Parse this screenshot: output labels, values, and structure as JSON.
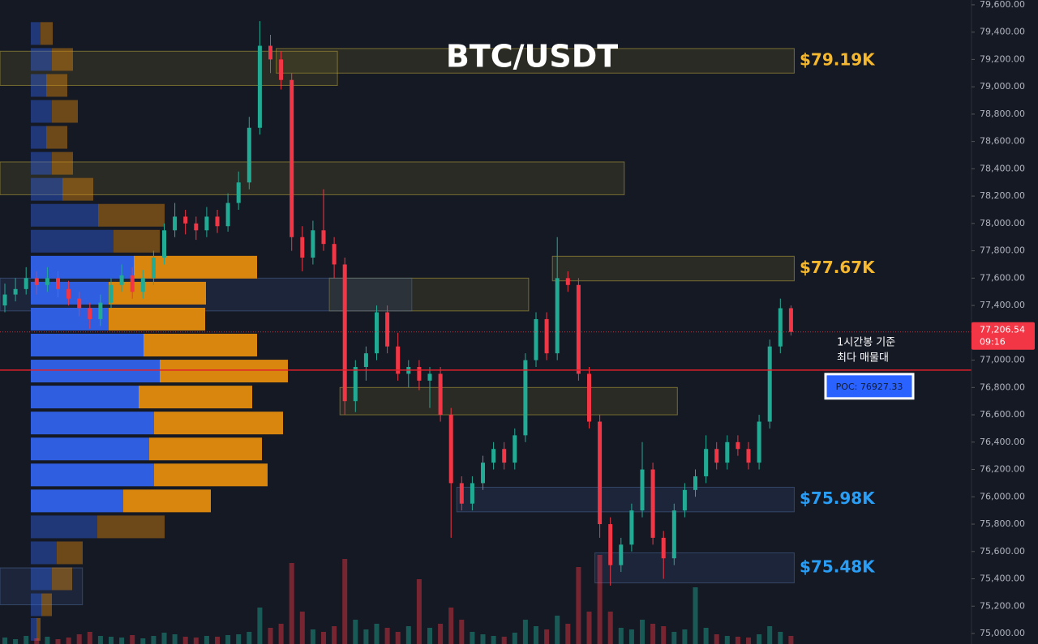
{
  "chart_data": {
    "type": "candlestick",
    "title": "BTC/USDT",
    "ylim": [
      74923,
      79635
    ],
    "yticks": [
      {
        "value": 75000,
        "label": "75,000.00"
      },
      {
        "value": 75200,
        "label": "75,200.00"
      },
      {
        "value": 75400,
        "label": "75,400.00"
      },
      {
        "value": 75600,
        "label": "75,600.00"
      },
      {
        "value": 75800,
        "label": "75,800.00"
      },
      {
        "value": 76000,
        "label": "76,000.00"
      },
      {
        "value": 76200,
        "label": "76,200.00"
      },
      {
        "value": 76400,
        "label": "76,400.00"
      },
      {
        "value": 76600,
        "label": "76,600.00"
      },
      {
        "value": 76800,
        "label": "76,800.00"
      },
      {
        "value": 77000,
        "label": "77,000.00"
      },
      {
        "value": 77200,
        "label": "77,200.00"
      },
      {
        "value": 77400,
        "label": "77,400.00"
      },
      {
        "value": 77600,
        "label": "77,600.00"
      },
      {
        "value": 77800,
        "label": "77,800.00"
      },
      {
        "value": 78000,
        "label": "78,000.00"
      },
      {
        "value": 78200,
        "label": "78,200.00"
      },
      {
        "value": 78400,
        "label": "78,400.00"
      },
      {
        "value": 78600,
        "label": "78,600.00"
      },
      {
        "value": 78800,
        "label": "78,800.00"
      },
      {
        "value": 79000,
        "label": "79,000.00"
      },
      {
        "value": 79200,
        "label": "79,200.00"
      },
      {
        "value": 79400,
        "label": "79,400.00"
      },
      {
        "value": 79600,
        "label": "79,600.00"
      }
    ],
    "grid": false,
    "up_color": "#22ab94",
    "down_color": "#f23645",
    "ohlc": [
      [
        77400,
        77560,
        77350,
        77480
      ],
      [
        77480,
        77600,
        77430,
        77520
      ],
      [
        77520,
        77680,
        77480,
        77600
      ],
      [
        77600,
        77650,
        77480,
        77550
      ],
      [
        77550,
        77680,
        77500,
        77600
      ],
      [
        77600,
        77650,
        77460,
        77520
      ],
      [
        77520,
        77580,
        77400,
        77450
      ],
      [
        77450,
        77500,
        77320,
        77380
      ],
      [
        77380,
        77420,
        77230,
        77300
      ],
      [
        77300,
        77480,
        77250,
        77420
      ],
      [
        77420,
        77600,
        77380,
        77550
      ],
      [
        77550,
        77700,
        77500,
        77620
      ],
      [
        77620,
        77680,
        77450,
        77500
      ],
      [
        77500,
        77660,
        77450,
        77600
      ],
      [
        77600,
        77800,
        77550,
        77750
      ],
      [
        77750,
        78000,
        77700,
        77950
      ],
      [
        77950,
        78150,
        77900,
        78050
      ],
      [
        78050,
        78100,
        77920,
        78000
      ],
      [
        78000,
        78050,
        77880,
        77950
      ],
      [
        77950,
        78120,
        77900,
        78050
      ],
      [
        78050,
        78100,
        77930,
        77980
      ],
      [
        77980,
        78220,
        77940,
        78150
      ],
      [
        78150,
        78380,
        78100,
        78300
      ],
      [
        78300,
        78780,
        78250,
        78700
      ],
      [
        78700,
        79480,
        78650,
        79300
      ],
      [
        79300,
        79380,
        79100,
        79200
      ],
      [
        79200,
        79260,
        78980,
        79050
      ],
      [
        79050,
        79100,
        77800,
        77900
      ],
      [
        77900,
        77980,
        77650,
        77750
      ],
      [
        77750,
        78020,
        77700,
        77950
      ],
      [
        77950,
        78250,
        77800,
        77850
      ],
      [
        77850,
        77900,
        77600,
        77700
      ],
      [
        77700,
        77750,
        76600,
        76700
      ],
      [
        76700,
        77000,
        76620,
        76950
      ],
      [
        76950,
        77100,
        76850,
        77050
      ],
      [
        77050,
        77400,
        77000,
        77350
      ],
      [
        77350,
        77400,
        77050,
        77100
      ],
      [
        77100,
        77200,
        76850,
        76900
      ],
      [
        76900,
        77000,
        76800,
        76950
      ],
      [
        76950,
        77000,
        76780,
        76850
      ],
      [
        76850,
        76950,
        76650,
        76900
      ],
      [
        76900,
        76950,
        76550,
        76600
      ],
      [
        76600,
        76650,
        75700,
        76100
      ],
      [
        76100,
        76150,
        75900,
        75950
      ],
      [
        75950,
        76150,
        75900,
        76100
      ],
      [
        76100,
        76300,
        76050,
        76250
      ],
      [
        76250,
        76400,
        76200,
        76350
      ],
      [
        76350,
        76400,
        76200,
        76250
      ],
      [
        76250,
        76500,
        76200,
        76450
      ],
      [
        76450,
        77050,
        76400,
        77000
      ],
      [
        77000,
        77350,
        76950,
        77300
      ],
      [
        77300,
        77350,
        77000,
        77050
      ],
      [
        77050,
        77900,
        77000,
        77600
      ],
      [
        77600,
        77650,
        77500,
        77550
      ],
      [
        77550,
        77600,
        76850,
        76900
      ],
      [
        76900,
        76950,
        76500,
        76550
      ],
      [
        76550,
        76600,
        75700,
        75800
      ],
      [
        75800,
        75850,
        75350,
        75500
      ],
      [
        75500,
        75700,
        75450,
        75650
      ],
      [
        75650,
        75950,
        75600,
        75900
      ],
      [
        75900,
        76400,
        75850,
        76200
      ],
      [
        76200,
        76250,
        75650,
        75700
      ],
      [
        75700,
        75750,
        75400,
        75550
      ],
      [
        75550,
        75950,
        75500,
        75900
      ],
      [
        75900,
        76100,
        75850,
        76050
      ],
      [
        76050,
        76200,
        76000,
        76150
      ],
      [
        76150,
        76450,
        76100,
        76350
      ],
      [
        76350,
        76400,
        76200,
        76250
      ],
      [
        76250,
        76450,
        76200,
        76400
      ],
      [
        76400,
        76450,
        76300,
        76350
      ],
      [
        76350,
        76400,
        76200,
        76250
      ],
      [
        76250,
        76600,
        76200,
        76550
      ],
      [
        76550,
        77150,
        76500,
        77100
      ],
      [
        77100,
        77450,
        77050,
        77380
      ],
      [
        77380,
        77400,
        77180,
        77206.54
      ]
    ],
    "volume": [
      8,
      6,
      10,
      7,
      9,
      6,
      8,
      12,
      15,
      10,
      9,
      8,
      11,
      7,
      10,
      14,
      12,
      9,
      8,
      10,
      9,
      11,
      12,
      15,
      45,
      20,
      25,
      100,
      40,
      18,
      15,
      22,
      105,
      30,
      18,
      25,
      20,
      15,
      22,
      80,
      20,
      25,
      45,
      30,
      15,
      12,
      10,
      9,
      14,
      30,
      22,
      18,
      35,
      25,
      95,
      40,
      110,
      40,
      20,
      18,
      30,
      25,
      22,
      15,
      18,
      70,
      20,
      12,
      10,
      9,
      8,
      12,
      22,
      15,
      10
    ],
    "volume_profile": {
      "prices": [
        79390,
        79200,
        79010,
        78820,
        78630,
        78440,
        78250,
        78060,
        77870,
        77680,
        77490,
        77300,
        77110,
        76920,
        76730,
        76540,
        76350,
        76160,
        75970,
        75780,
        75590,
        75400,
        75210,
        75030
      ],
      "buy": [
        12,
        26,
        19,
        26,
        19,
        26,
        39,
        83,
        102,
        127,
        96,
        96,
        139,
        159,
        133,
        152,
        146,
        152,
        114,
        82,
        32,
        26,
        13,
        7
      ],
      "sell": [
        15,
        26,
        26,
        32,
        26,
        26,
        38,
        82,
        57,
        152,
        120,
        119,
        140,
        158,
        140,
        159,
        139,
        140,
        108,
        83,
        32,
        25,
        13,
        5
      ],
      "buy_color": "#2f5fe0",
      "sell_color": "#d9860e",
      "value_area": [
        75900,
        77750
      ]
    },
    "zones": [
      {
        "low": 79100,
        "high": 79280,
        "from": 26,
        "to": 74,
        "color": "yellow",
        "label": "$79.19K"
      },
      {
        "low": 79010,
        "high": 79260,
        "from": 0,
        "to": 31,
        "color": "yellow"
      },
      {
        "low": 78210,
        "high": 78450,
        "from": 0,
        "to": 58,
        "color": "yellow"
      },
      {
        "low": 77580,
        "high": 77760,
        "from": 52,
        "to": 74,
        "color": "yellow",
        "label": "$77.67K"
      },
      {
        "low": 77360,
        "high": 77600,
        "from": 31,
        "to": 49,
        "color": "yellow"
      },
      {
        "low": 77360,
        "high": 77600,
        "from": 0,
        "to": 38,
        "color": "blue"
      },
      {
        "low": 76600,
        "high": 76800,
        "from": 32,
        "to": 63,
        "color": "yellow"
      },
      {
        "low": 75890,
        "high": 76070,
        "from": 43,
        "to": 74,
        "color": "blue",
        "label": "$75.98K"
      },
      {
        "low": 75370,
        "high": 75590,
        "from": 56,
        "to": 74,
        "color": "blue",
        "label": "$75.48K"
      },
      {
        "low": 75210,
        "high": 75480,
        "from": 0,
        "to": 7,
        "color": "blue"
      }
    ],
    "poc": {
      "value": 76927.33,
      "label": "POC: 76927.33"
    },
    "annotation": [
      "1시간봉 기준",
      "최다 매물대"
    ],
    "last_price": {
      "value": 77206.54,
      "label": "77,206.54"
    },
    "countdown": "09:16"
  }
}
